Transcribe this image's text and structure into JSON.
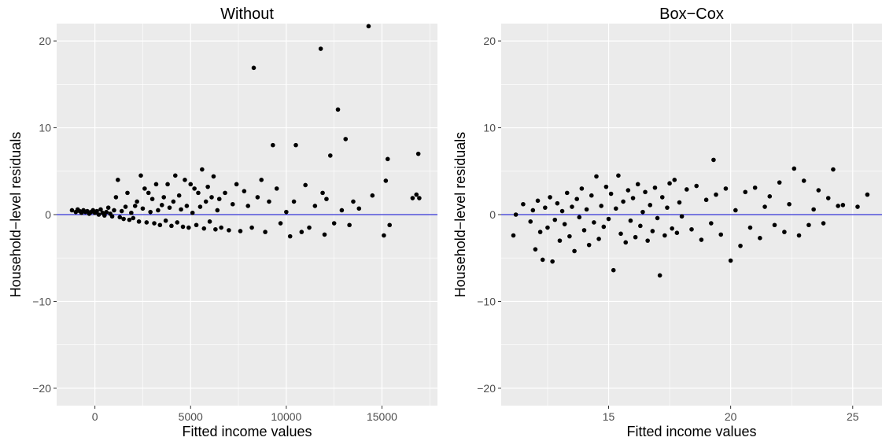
{
  "chart_data": [
    {
      "type": "scatter",
      "title": "Without",
      "xlabel": "Fitted income values",
      "ylabel": "Household−level residuals",
      "xlim": [
        -2000,
        17900
      ],
      "ylim": [
        -22,
        22
      ],
      "x_ticks": [
        0,
        5000,
        10000,
        15000
      ],
      "x_tick_labels": [
        "0",
        "5000",
        "10000",
        "15000"
      ],
      "y_ticks": [
        -20,
        -10,
        0,
        10,
        20
      ],
      "y_tick_labels": [
        "−20",
        "−10",
        "0",
        "10",
        "20"
      ],
      "grid": true,
      "reference_line": {
        "y": 0,
        "color": "#0000cc"
      },
      "point_color": "#000000",
      "points": [
        [
          -1200,
          0.5
        ],
        [
          -1000,
          0.3
        ],
        [
          -900,
          0.6
        ],
        [
          -800,
          0.4
        ],
        [
          -700,
          0.2
        ],
        [
          -600,
          0.5
        ],
        [
          -500,
          0.3
        ],
        [
          -400,
          0.4
        ],
        [
          -300,
          0.1
        ],
        [
          -200,
          0.3
        ],
        [
          -100,
          0.5
        ],
        [
          0,
          0.2
        ],
        [
          100,
          0.4
        ],
        [
          200,
          0.0
        ],
        [
          300,
          0.6
        ],
        [
          400,
          0.2
        ],
        [
          500,
          -0.1
        ],
        [
          600,
          0.3
        ],
        [
          700,
          0.8
        ],
        [
          800,
          0.1
        ],
        [
          900,
          -0.2
        ],
        [
          1000,
          0.5
        ],
        [
          1100,
          2.0
        ],
        [
          1200,
          4.0
        ],
        [
          1300,
          -0.3
        ],
        [
          1400,
          0.4
        ],
        [
          1500,
          -0.5
        ],
        [
          1600,
          0.9
        ],
        [
          1700,
          2.5
        ],
        [
          1800,
          -0.6
        ],
        [
          1900,
          0.2
        ],
        [
          2000,
          -0.4
        ],
        [
          2100,
          1.0
        ],
        [
          2200,
          1.5
        ],
        [
          2300,
          -0.8
        ],
        [
          2400,
          4.5
        ],
        [
          2500,
          0.7
        ],
        [
          2600,
          3.0
        ],
        [
          2700,
          -0.9
        ],
        [
          2800,
          2.5
        ],
        [
          2900,
          0.3
        ],
        [
          3000,
          1.8
        ],
        [
          3100,
          -1.0
        ],
        [
          3200,
          3.5
        ],
        [
          3300,
          0.5
        ],
        [
          3400,
          -1.2
        ],
        [
          3500,
          1.1
        ],
        [
          3600,
          2.0
        ],
        [
          3700,
          -0.7
        ],
        [
          3800,
          3.5
        ],
        [
          3900,
          0.8
        ],
        [
          4000,
          -1.3
        ],
        [
          4100,
          1.5
        ],
        [
          4200,
          4.5
        ],
        [
          4300,
          -0.9
        ],
        [
          4400,
          2.2
        ],
        [
          4500,
          0.6
        ],
        [
          4600,
          -1.4
        ],
        [
          4700,
          4.0
        ],
        [
          4800,
          1.0
        ],
        [
          4900,
          -1.5
        ],
        [
          5000,
          3.5
        ],
        [
          5100,
          0.2
        ],
        [
          5200,
          3.0
        ],
        [
          5300,
          -1.2
        ],
        [
          5400,
          2.5
        ],
        [
          5500,
          0.9
        ],
        [
          5600,
          5.2
        ],
        [
          5700,
          -1.6
        ],
        [
          5800,
          1.5
        ],
        [
          5900,
          3.2
        ],
        [
          6000,
          -0.8
        ],
        [
          6100,
          2.0
        ],
        [
          6200,
          4.4
        ],
        [
          6300,
          -1.7
        ],
        [
          6400,
          0.5
        ],
        [
          6500,
          1.8
        ],
        [
          6600,
          -1.5
        ],
        [
          6800,
          2.5
        ],
        [
          7000,
          -1.8
        ],
        [
          7200,
          1.2
        ],
        [
          7400,
          3.5
        ],
        [
          7600,
          -1.9
        ],
        [
          7800,
          2.7
        ],
        [
          8000,
          1.0
        ],
        [
          8200,
          -1.5
        ],
        [
          8300,
          16.9
        ],
        [
          8500,
          2.0
        ],
        [
          8700,
          4.0
        ],
        [
          8900,
          -2.0
        ],
        [
          9100,
          1.5
        ],
        [
          9300,
          8.0
        ],
        [
          9500,
          3.0
        ],
        [
          9700,
          -1.0
        ],
        [
          10000,
          0.3
        ],
        [
          10200,
          -2.5
        ],
        [
          10400,
          1.5
        ],
        [
          10500,
          8.0
        ],
        [
          10800,
          -2.0
        ],
        [
          11000,
          3.4
        ],
        [
          11200,
          -1.5
        ],
        [
          11500,
          1.0
        ],
        [
          11800,
          19.1
        ],
        [
          11900,
          2.5
        ],
        [
          12000,
          -2.3
        ],
        [
          12100,
          1.8
        ],
        [
          12300,
          6.8
        ],
        [
          12500,
          -1.0
        ],
        [
          12700,
          12.1
        ],
        [
          12900,
          0.5
        ],
        [
          13100,
          8.7
        ],
        [
          13300,
          -1.2
        ],
        [
          13500,
          1.5
        ],
        [
          13800,
          0.7
        ],
        [
          14300,
          21.7
        ],
        [
          14500,
          2.2
        ],
        [
          15100,
          -2.4
        ],
        [
          15200,
          3.9
        ],
        [
          15300,
          6.4
        ],
        [
          15400,
          -1.2
        ],
        [
          16600,
          1.9
        ],
        [
          16800,
          2.3
        ],
        [
          16900,
          7.0
        ],
        [
          16950,
          1.9
        ]
      ]
    },
    {
      "type": "scatter",
      "title": "Box−Cox",
      "xlabel": "Fitted income values",
      "ylabel": "Household−level residuals",
      "xlim": [
        10.6,
        26.2
      ],
      "ylim": [
        -22,
        22
      ],
      "x_ticks": [
        15,
        20,
        25
      ],
      "x_tick_labels": [
        "15",
        "20",
        "25"
      ],
      "y_ticks": [
        -20,
        -10,
        0,
        10,
        20
      ],
      "y_tick_labels": [
        "−20",
        "−10",
        "0",
        "10",
        "20"
      ],
      "grid": true,
      "reference_line": {
        "y": 0,
        "color": "#0000cc"
      },
      "point_color": "#000000",
      "points": [
        [
          11.1,
          -2.4
        ],
        [
          11.2,
          0.0
        ],
        [
          11.5,
          1.2
        ],
        [
          11.8,
          -0.8
        ],
        [
          11.9,
          0.5
        ],
        [
          12.0,
          -4.0
        ],
        [
          12.1,
          1.6
        ],
        [
          12.2,
          -2.0
        ],
        [
          12.3,
          -5.2
        ],
        [
          12.4,
          0.8
        ],
        [
          12.5,
          -1.5
        ],
        [
          12.6,
          2.0
        ],
        [
          12.7,
          -5.4
        ],
        [
          12.8,
          -0.6
        ],
        [
          12.9,
          1.3
        ],
        [
          13.0,
          -3.0
        ],
        [
          13.1,
          0.4
        ],
        [
          13.2,
          -1.1
        ],
        [
          13.3,
          2.5
        ],
        [
          13.4,
          -2.5
        ],
        [
          13.5,
          0.9
        ],
        [
          13.6,
          -4.2
        ],
        [
          13.7,
          1.8
        ],
        [
          13.8,
          -0.3
        ],
        [
          13.9,
          3.0
        ],
        [
          14.0,
          -1.8
        ],
        [
          14.1,
          0.6
        ],
        [
          14.2,
          -3.5
        ],
        [
          14.3,
          2.2
        ],
        [
          14.4,
          -0.9
        ],
        [
          14.5,
          4.4
        ],
        [
          14.6,
          -2.8
        ],
        [
          14.7,
          1.0
        ],
        [
          14.8,
          -1.4
        ],
        [
          14.9,
          3.2
        ],
        [
          15.0,
          -0.5
        ],
        [
          15.1,
          2.4
        ],
        [
          15.2,
          -6.4
        ],
        [
          15.3,
          0.7
        ],
        [
          15.4,
          4.5
        ],
        [
          15.5,
          -2.2
        ],
        [
          15.6,
          1.5
        ],
        [
          15.7,
          -3.2
        ],
        [
          15.8,
          2.8
        ],
        [
          15.9,
          -0.7
        ],
        [
          16.0,
          1.9
        ],
        [
          16.1,
          -2.6
        ],
        [
          16.2,
          3.5
        ],
        [
          16.3,
          -1.3
        ],
        [
          16.4,
          0.3
        ],
        [
          16.5,
          2.6
        ],
        [
          16.6,
          -3.0
        ],
        [
          16.7,
          1.1
        ],
        [
          16.8,
          -1.9
        ],
        [
          16.9,
          3.1
        ],
        [
          17.0,
          -0.4
        ],
        [
          17.1,
          -7.0
        ],
        [
          17.2,
          2.0
        ],
        [
          17.3,
          -2.4
        ],
        [
          17.4,
          0.8
        ],
        [
          17.5,
          3.6
        ],
        [
          17.6,
          -1.6
        ],
        [
          17.7,
          4.0
        ],
        [
          17.8,
          -2.1
        ],
        [
          17.9,
          1.4
        ],
        [
          18.0,
          -0.2
        ],
        [
          18.2,
          2.9
        ],
        [
          18.4,
          -1.7
        ],
        [
          18.6,
          3.3
        ],
        [
          18.8,
          -2.9
        ],
        [
          19.0,
          1.7
        ],
        [
          19.2,
          -1.0
        ],
        [
          19.3,
          6.3
        ],
        [
          19.4,
          2.3
        ],
        [
          19.6,
          -2.3
        ],
        [
          19.8,
          3.0
        ],
        [
          20.0,
          -5.3
        ],
        [
          20.2,
          0.5
        ],
        [
          20.4,
          -3.6
        ],
        [
          20.6,
          2.6
        ],
        [
          20.8,
          -1.5
        ],
        [
          21.0,
          3.1
        ],
        [
          21.2,
          -2.7
        ],
        [
          21.4,
          0.9
        ],
        [
          21.6,
          2.1
        ],
        [
          21.8,
          -1.2
        ],
        [
          22.0,
          3.7
        ],
        [
          22.2,
          -2.0
        ],
        [
          22.4,
          1.2
        ],
        [
          22.6,
          5.3
        ],
        [
          22.8,
          -2.4
        ],
        [
          23.0,
          3.9
        ],
        [
          23.2,
          -1.2
        ],
        [
          23.4,
          0.6
        ],
        [
          23.6,
          2.8
        ],
        [
          23.8,
          -1.0
        ],
        [
          24.0,
          1.9
        ],
        [
          24.2,
          5.2
        ],
        [
          24.4,
          1.0
        ],
        [
          24.6,
          1.1
        ],
        [
          25.2,
          0.9
        ],
        [
          25.6,
          2.3
        ]
      ]
    }
  ]
}
